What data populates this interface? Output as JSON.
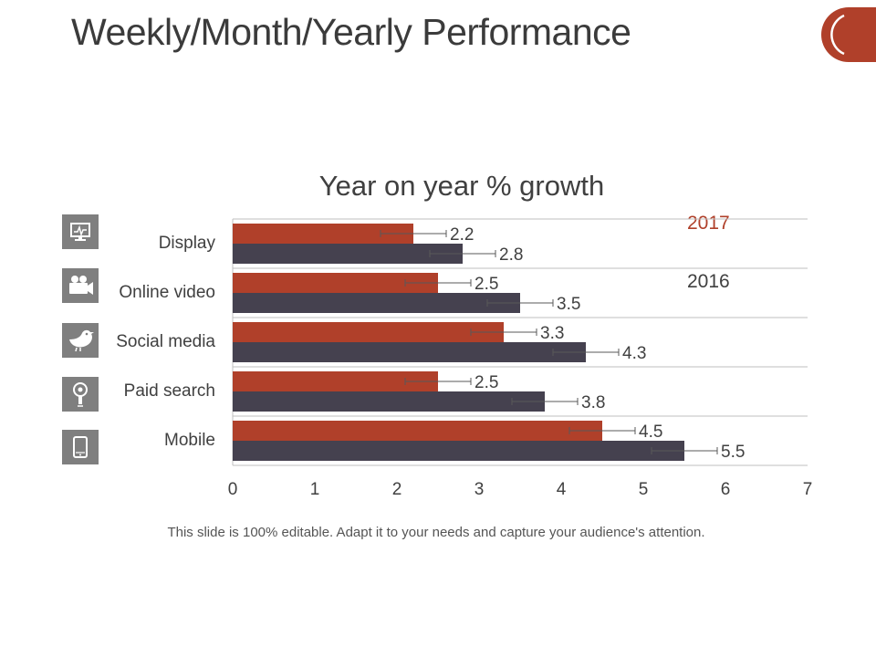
{
  "slide": {
    "title": "Weekly/Month/Yearly Performance",
    "footer": "This slide is 100% editable. Adapt it to your needs and capture your audience's attention."
  },
  "colors": {
    "series_2017": "#b0402a",
    "series_2016": "#45414f",
    "axis": "#bfbfbf",
    "icon_bg": "#7f7f7f",
    "text": "#404040"
  },
  "icons": [
    "monitor-icon",
    "video-camera-icon",
    "bird-icon",
    "lightbulb-icon",
    "mobile-phone-icon"
  ],
  "chart_data": {
    "type": "bar",
    "orientation": "horizontal",
    "title": "Year on year % growth",
    "categories": [
      "Display",
      "Online video",
      "Social media",
      "Paid search",
      "Mobile"
    ],
    "series": [
      {
        "name": "2017",
        "values": [
          2.2,
          2.5,
          3.3,
          2.5,
          4.5
        ]
      },
      {
        "name": "2016",
        "values": [
          2.8,
          3.5,
          4.3,
          3.8,
          5.5
        ]
      }
    ],
    "error_bars": true,
    "xlim": [
      0,
      7
    ],
    "x_ticks": [
      "0",
      "1",
      "2",
      "3",
      "4",
      "5",
      "6",
      "7"
    ],
    "legend_position": "right",
    "grid": "horizontal"
  }
}
